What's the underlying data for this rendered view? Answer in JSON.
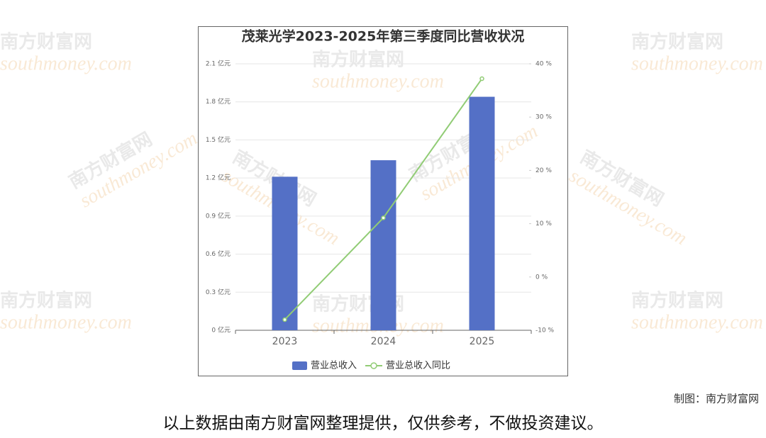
{
  "chart_data": {
    "type": "bar",
    "title": "茂莱光学2023-2025年第三季度同比营收状况",
    "categories": [
      "2023",
      "2024",
      "2025"
    ],
    "series": [
      {
        "name": "营业总收入",
        "type": "bar",
        "color": "#5470c6",
        "values": [
          1.21,
          1.34,
          1.84
        ]
      },
      {
        "name": "营业总收入同比",
        "type": "line",
        "axis": "y2",
        "color": "#91cc75",
        "values": [
          -8,
          11.1,
          37.2
        ]
      }
    ],
    "ylim": [
      0,
      2.1
    ],
    "yticks": [
      {
        "value": 0,
        "label": "0 亿元"
      },
      {
        "value": 0.3,
        "label": "0.3 亿元"
      },
      {
        "value": 0.6,
        "label": "0.6 亿元"
      },
      {
        "value": 0.9,
        "label": "0.9 亿元"
      },
      {
        "value": 1.2,
        "label": "1.2 亿元"
      },
      {
        "value": 1.5,
        "label": "1.5 亿元"
      },
      {
        "value": 1.8,
        "label": "1.8 亿元"
      },
      {
        "value": 2.1,
        "label": "2.1 亿元"
      }
    ],
    "y2lim": [
      -10,
      40
    ],
    "y2ticks": [
      {
        "value": -10,
        "label": "-10 %"
      },
      {
        "value": 0,
        "label": "0 %"
      },
      {
        "value": 10,
        "label": "10 %"
      },
      {
        "value": 20,
        "label": "20 %"
      },
      {
        "value": 30,
        "label": "30 %"
      },
      {
        "value": 40,
        "label": "40 %"
      }
    ],
    "grid": true,
    "legend": "bottom"
  },
  "watermark": {
    "cn": "南方财富网",
    "en": "southmoney.com"
  },
  "credit": "制图：南方财富网",
  "caption": "以上数据由南方财富网整理提供，仅供参考，不做投资建议。"
}
